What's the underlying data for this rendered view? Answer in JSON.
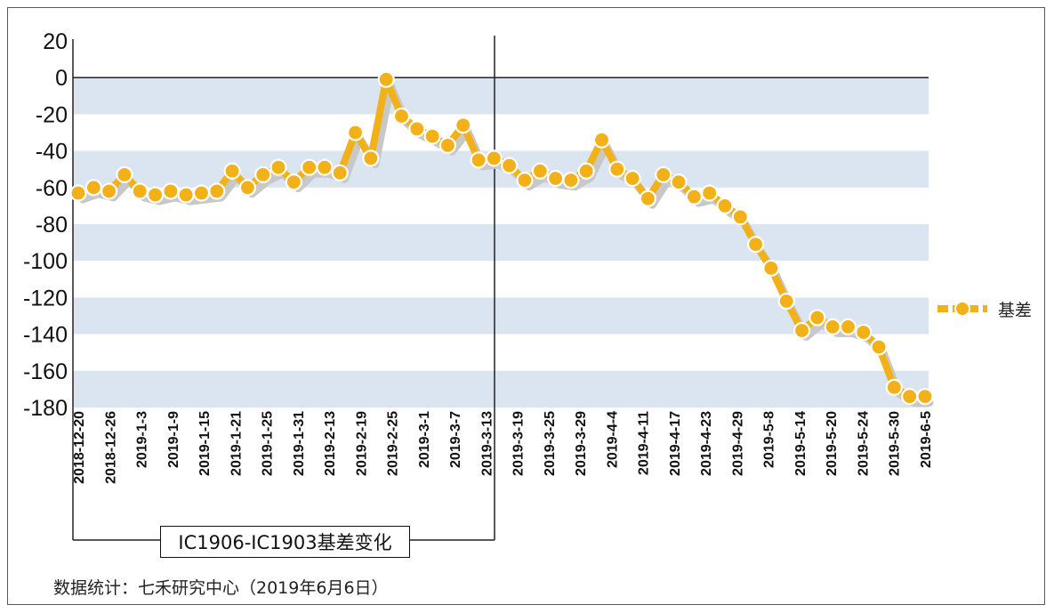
{
  "chart_data": {
    "type": "line",
    "title": "IC1906-IC1903基差变化",
    "source": "数据统计：七禾研究中心（2019年6月6日）",
    "xlabel": "",
    "ylabel": "",
    "ylim": [
      -180,
      20
    ],
    "yticks": [
      20,
      0,
      -20,
      -40,
      -60,
      -80,
      -100,
      -120,
      -140,
      -160,
      -180
    ],
    "xtick_labels": [
      "2018-12-20",
      "2018-12-26",
      "2019-1-3",
      "2019-1-9",
      "2019-1-15",
      "2019-1-21",
      "2019-1-25",
      "2019-1-31",
      "2019-2-13",
      "2019-2-19",
      "2019-2-25",
      "2019-3-1",
      "2019-3-7",
      "2019-3-13",
      "2019-3-19",
      "2019-3-25",
      "2019-3-29",
      "2019-4-4",
      "2019-4-11",
      "2019-4-17",
      "2019-4-23",
      "2019-4-29",
      "2019-5-8",
      "2019-5-14",
      "2019-5-20",
      "2019-5-24",
      "2019-5-30",
      "2019-6-5"
    ],
    "grid": "horizontal bands",
    "legend_position": "right",
    "accent_color": "#f2b019",
    "band_color": "#dbe5f1",
    "series": [
      {
        "name": "基差",
        "values": [
          -63,
          -60,
          -62,
          -53,
          -62,
          -64,
          -62,
          -64,
          -63,
          -62,
          -51,
          -60,
          -53,
          -49,
          -57,
          -49,
          -49,
          -52,
          -30,
          -44,
          -1,
          -21,
          -28,
          -32,
          -37,
          -26,
          -45,
          -44,
          -48,
          -56,
          -51,
          -55,
          -56,
          -51,
          -34,
          -50,
          -55,
          -66,
          -53,
          -57,
          -65,
          -63,
          -70,
          -76,
          -91,
          -104,
          -122,
          -138,
          -131,
          -136,
          -136,
          -139,
          -147,
          -169,
          -174,
          -174
        ]
      }
    ]
  }
}
